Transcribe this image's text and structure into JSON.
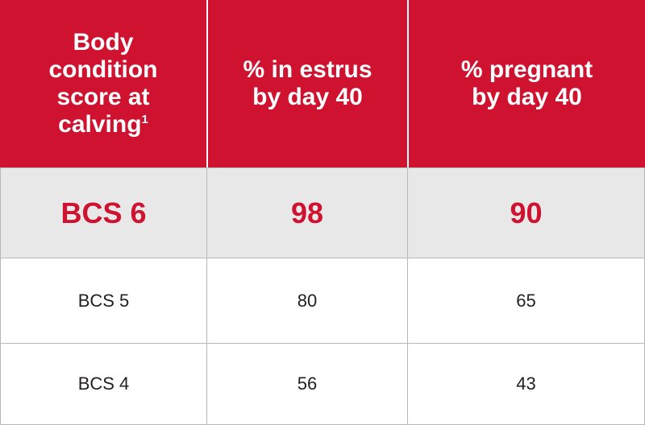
{
  "header": {
    "col1_text": "Body condition score at calving",
    "col1_superscript": "1",
    "col2": "% in estrus by day 40",
    "col3": "% pregnant by day 40"
  },
  "rows": [
    {
      "score": "BCS 6",
      "estrus": "98",
      "pregnant": "90"
    },
    {
      "score": "BCS 5",
      "estrus": "80",
      "pregnant": "65"
    },
    {
      "score": "BCS 4",
      "estrus": "56",
      "pregnant": "43"
    }
  ],
  "colors": {
    "header_bg": "#ce1230",
    "highlight_bg": "#e8e8e8",
    "highlight_text": "#ce1230"
  }
}
